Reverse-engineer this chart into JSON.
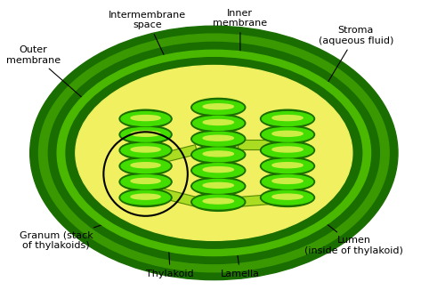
{
  "bg_color": "#ffffff",
  "colors": {
    "outermost": "#1a6e00",
    "outer_ring": "#3a9900",
    "middle_ring": "#1a6e00",
    "inner_ring": "#4ab800",
    "innermost_ring": "#1a6e00",
    "stroma": "#f0f060",
    "thylakoid_border": "#1a6e00",
    "thylakoid_fill": "#44dd00",
    "thylakoid_lumen": "#ccee44",
    "lamella_fill": "#aadd22",
    "lamella_border": "#558800",
    "granum_circle": "#000000"
  },
  "text_color": "#000000",
  "labels": {
    "outer_membrane": "Outer\nmembrane",
    "intermembrane": "Intermembrane\nspace",
    "inner_membrane": "Inner\nmembrane",
    "stroma": "Stroma\n(aqueous fluid)",
    "granum": "Granum (stack\nof thylakoids)",
    "thylakoid": "Thylakoid",
    "lamella": "Lamella",
    "lumen": "Lumen\n(inside of thylakoid)"
  },
  "figsize": [
    4.73,
    3.35
  ],
  "dpi": 100
}
